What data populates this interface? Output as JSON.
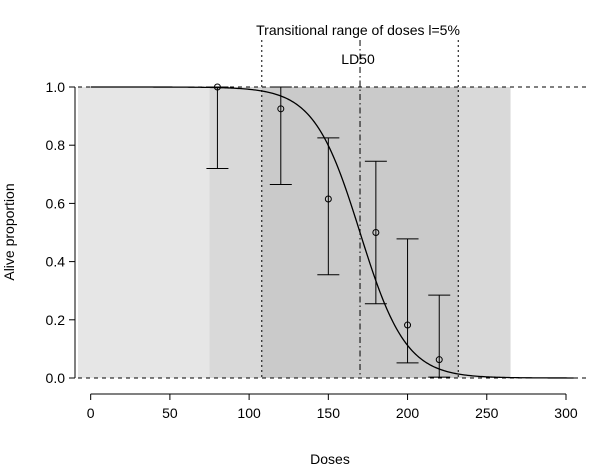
{
  "chart_data": {
    "type": "scatter",
    "title": "",
    "xlabel": "Doses",
    "ylabel": "Alive proportion",
    "xlim": [
      -8,
      312
    ],
    "ylim": [
      0,
      1
    ],
    "x_ticks": [
      0,
      50,
      100,
      150,
      200,
      250,
      300
    ],
    "y_ticks": [
      0.0,
      0.2,
      0.4,
      0.6,
      0.8,
      1.0
    ],
    "x_tick_labels": [
      "0",
      "50",
      "100",
      "150",
      "200",
      "250",
      "300"
    ],
    "y_tick_labels": [
      "0.0",
      "0.2",
      "0.4",
      "0.6",
      "0.8",
      "1.0"
    ],
    "grid": false,
    "shaded_bands": [
      {
        "x0": -8,
        "x1": 265,
        "color": "#e6e6e6"
      },
      {
        "x0": 75,
        "x1": 265,
        "color": "#d9d9d9"
      },
      {
        "x0": 108,
        "x1": 232,
        "color": "#cacaca"
      }
    ],
    "observations": [
      {
        "x": 80,
        "y": 1.0,
        "lower": 0.72,
        "upper": 1.0
      },
      {
        "x": 120,
        "y": 0.925,
        "lower": 0.665,
        "upper": 1.0
      },
      {
        "x": 150,
        "y": 0.615,
        "lower": 0.355,
        "upper": 0.825
      },
      {
        "x": 180,
        "y": 0.5,
        "lower": 0.255,
        "upper": 0.745
      },
      {
        "x": 200,
        "y": 0.182,
        "lower": 0.052,
        "upper": 0.478
      },
      {
        "x": 220,
        "y": 0.063,
        "lower": 0.003,
        "upper": 0.285
      }
    ],
    "fitted_curve": {
      "type": "logistic-decreasing",
      "ld50": 170,
      "scale": 14.5,
      "x_from": 0,
      "x_to": 305
    },
    "reference_lines": [
      {
        "orientation": "horizontal",
        "y": 1.0,
        "style": "dashed"
      },
      {
        "orientation": "horizontal",
        "y": 0.0,
        "style": "dashed"
      },
      {
        "orientation": "vertical",
        "x": 108,
        "style": "dotted"
      },
      {
        "orientation": "vertical",
        "x": 232,
        "style": "dotted"
      },
      {
        "orientation": "vertical",
        "x": 170,
        "style": "dashdot"
      }
    ],
    "annotations": [
      {
        "text": "Transitional range of doses l=5%",
        "x": 170
      },
      {
        "text": "LD50",
        "x": 170
      }
    ]
  }
}
